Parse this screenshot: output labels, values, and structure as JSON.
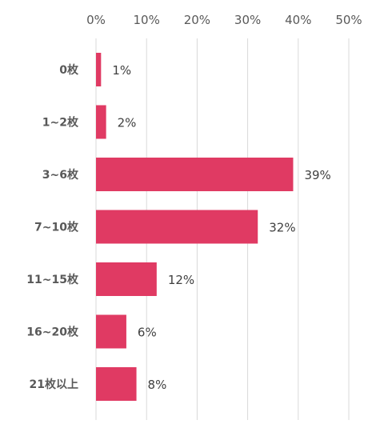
{
  "chart_data": {
    "type": "bar",
    "orientation": "horizontal",
    "categories": [
      "0枚",
      "1~2枚",
      "3~6枚",
      "7~10枚",
      "11~15枚",
      "16~20枚",
      "21枚以上"
    ],
    "values": [
      1,
      2,
      39,
      32,
      12,
      6,
      8
    ],
    "value_labels": [
      "1%",
      "2%",
      "39%",
      "32%",
      "12%",
      "6%",
      "8%"
    ],
    "x_ticks": [
      "0%",
      "10%",
      "20%",
      "30%",
      "40%",
      "50%"
    ],
    "xlim": [
      0,
      50
    ],
    "x_axis_position": "top",
    "grid": "vertical",
    "legend": "none",
    "title": "",
    "xlabel": "",
    "ylabel": "",
    "bar_color": "#e03a63"
  }
}
